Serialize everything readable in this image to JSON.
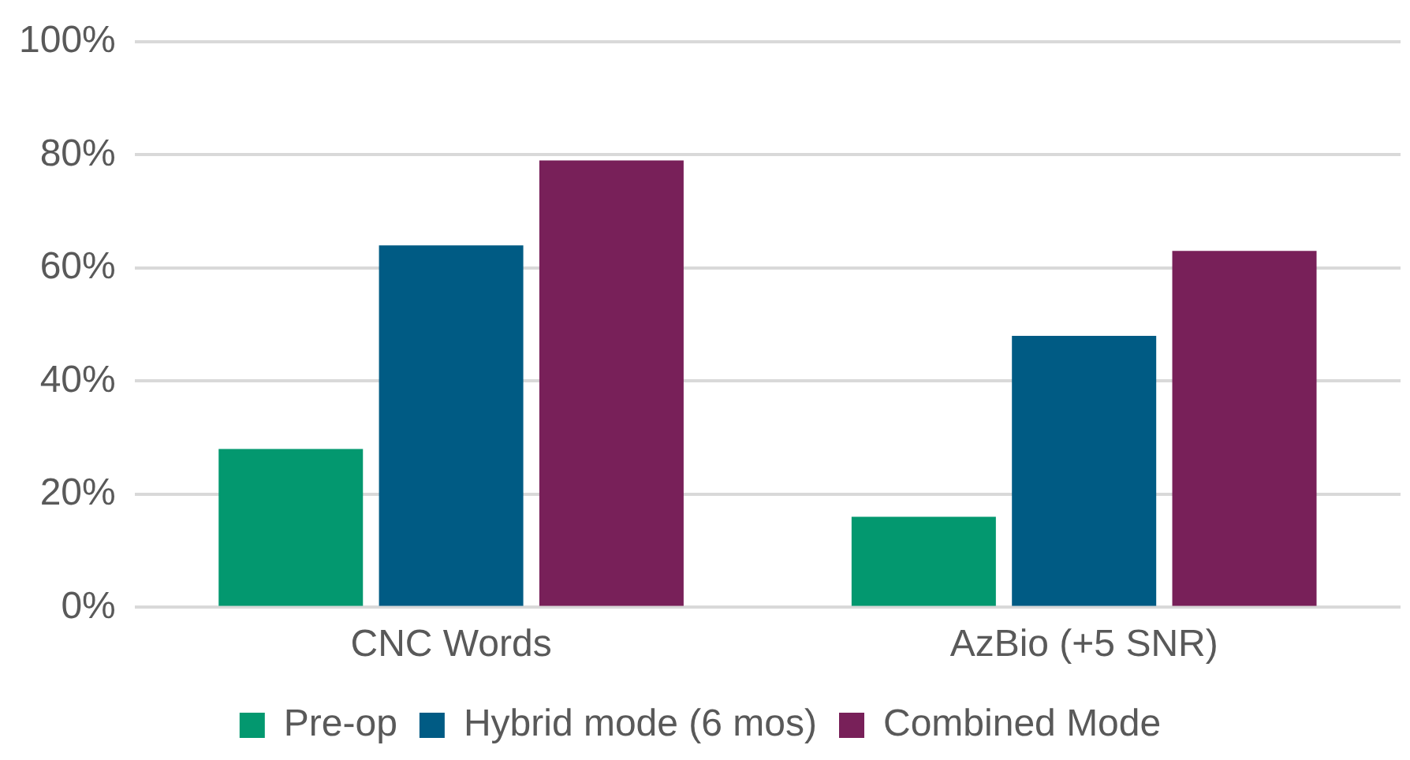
{
  "chart_data": {
    "type": "bar",
    "categories": [
      "CNC Words",
      "AzBio (+5 SNR)"
    ],
    "series": [
      {
        "name": "Pre-op",
        "color": "#03986f",
        "values": [
          28,
          16
        ]
      },
      {
        "name": "Hybrid mode (6 mos)",
        "color": "#005b84",
        "values": [
          64,
          48
        ]
      },
      {
        "name": "Combined Mode",
        "color": "#782059",
        "values": [
          79,
          63
        ]
      }
    ],
    "ylim": [
      0,
      100
    ],
    "yticks": [
      {
        "value": 0,
        "label": "0%"
      },
      {
        "value": 20,
        "label": "20%"
      },
      {
        "value": 40,
        "label": "40%"
      },
      {
        "value": 60,
        "label": "60%"
      },
      {
        "value": 80,
        "label": "80%"
      },
      {
        "value": 100,
        "label": "100%"
      }
    ],
    "grid": "y",
    "legend": "bottom"
  }
}
